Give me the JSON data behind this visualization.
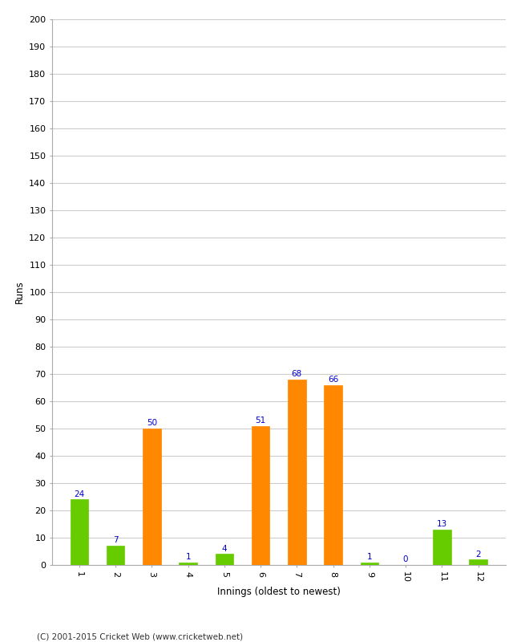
{
  "values": [
    24,
    7,
    50,
    1,
    4,
    51,
    68,
    66,
    1,
    0,
    13,
    2
  ],
  "colors": [
    "#66cc00",
    "#66cc00",
    "#ff8800",
    "#66cc00",
    "#66cc00",
    "#ff8800",
    "#ff8800",
    "#ff8800",
    "#66cc00",
    "#66cc00",
    "#66cc00",
    "#66cc00"
  ],
  "xlabel": "Innings (oldest to newest)",
  "ylabel": "Runs",
  "ylim": [
    0,
    200
  ],
  "yticks": [
    0,
    10,
    20,
    30,
    40,
    50,
    60,
    70,
    80,
    90,
    100,
    110,
    120,
    130,
    140,
    150,
    160,
    170,
    180,
    190,
    200
  ],
  "xtick_labels": [
    "1",
    "2",
    "3",
    "4",
    "5",
    "6",
    "7",
    "8",
    "9",
    "10",
    "11",
    "12"
  ],
  "label_color": "#0000cc",
  "label_fontsize": 7.5,
  "background_color": "#ffffff",
  "grid_color": "#cccccc",
  "copyright": "(C) 2001-2015 Cricket Web (www.cricketweb.net)",
  "bar_width": 0.5
}
